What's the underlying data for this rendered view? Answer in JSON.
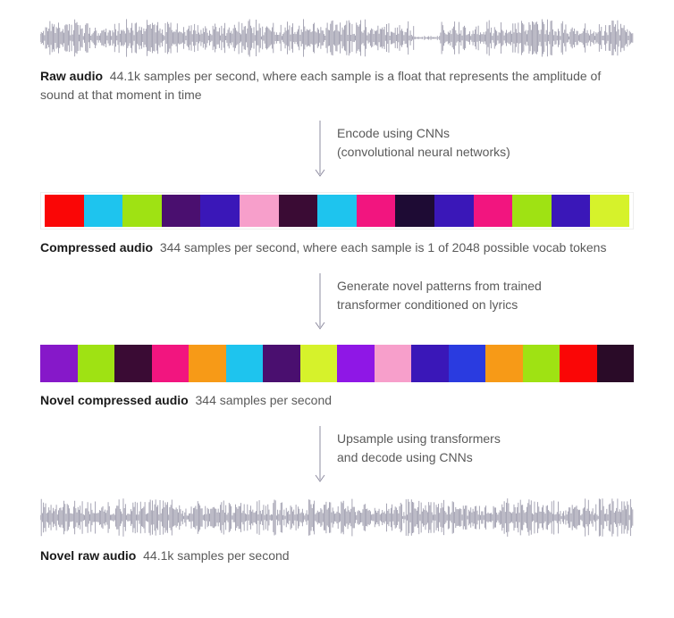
{
  "waveform_color": "#8e8ca0",
  "arrow_color": "#8e8ca0",
  "text_color": "#6b6b6b",
  "bold_color": "#1a1a1a",
  "stage1": {
    "title": "Raw audio",
    "desc": "44.1k samples per second, where each sample is a float that represents the amplitude of sound at that moment in time"
  },
  "arrow1": {
    "line1": "Encode using CNNs",
    "line2": "(convolutional neural networks)"
  },
  "stage2": {
    "title": "Compressed audio",
    "desc": "344 samples per second, where each sample is 1 of 2048 possible vocab tokens",
    "token_colors": [
      "#fa0606",
      "#1ec4ee",
      "#9fe213",
      "#4a0f6f",
      "#3a17b8",
      "#f79fcb",
      "#3a0b34",
      "#1ec4ee",
      "#f2157f",
      "#1e0b34",
      "#3a17b8",
      "#f2157f",
      "#9fe213",
      "#3a17b8",
      "#d6f22b"
    ]
  },
  "arrow2": {
    "line1": "Generate novel patterns from trained",
    "line2": "transformer conditioned on lyrics"
  },
  "stage3": {
    "title": "Novel compressed audio",
    "desc": "344 samples per second",
    "token_colors": [
      "#8618c9",
      "#9fe213",
      "#3a0b34",
      "#f2157f",
      "#f79a17",
      "#1ec4ee",
      "#4a0f6f",
      "#d6f22b",
      "#8f17e6",
      "#f79fcb",
      "#3a17b8",
      "#2a3be0",
      "#f79a17",
      "#9fe213",
      "#fa0606",
      "#2a0b28"
    ]
  },
  "arrow3": {
    "line1": "Upsample using transformers",
    "line2": "and decode using CNNs"
  },
  "stage4": {
    "title": "Novel raw audio",
    "desc": "44.1k samples per second"
  }
}
